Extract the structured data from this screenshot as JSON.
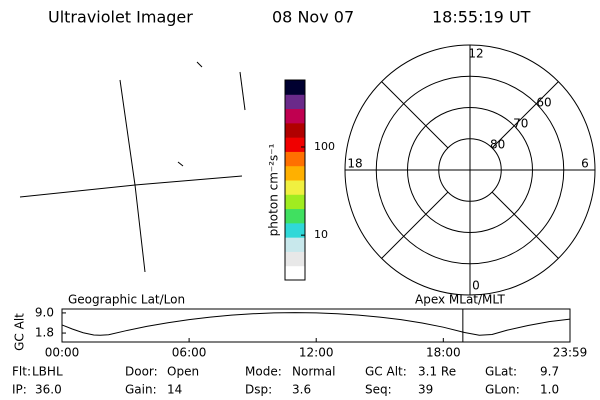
{
  "header": {
    "title": "Ultraviolet Imager",
    "date": "08 Nov 07",
    "time": "18:55:19 UT"
  },
  "colorbar": {
    "label": "photon cm⁻²s⁻¹",
    "log_scale": true,
    "lim": [
      3.1,
      575
    ],
    "ticks": [
      10,
      100
    ],
    "colors": [
      "#ffffff",
      "#e8e8e8",
      "#c8e8ec",
      "#30d8d8",
      "#40e060",
      "#a0ec20",
      "#f0f040",
      "#ffb000",
      "#ff7000",
      "#f00000",
      "#b00000",
      "#c00050",
      "#6a2a8a",
      "#000030"
    ]
  },
  "polar": {
    "mlt_ticks": [
      12,
      18,
      6,
      0
    ],
    "lat_circles": [
      60,
      70,
      80
    ],
    "lat_lim": [
      50,
      90
    ]
  },
  "chart_data": {
    "type": "line",
    "ylabel": "GC Alt",
    "left_title": "Geographic Lat/Lon",
    "right_title": "Apex MLat/MLT",
    "x": [
      0,
      0.5,
      1,
      1.5,
      1.8,
      2.2,
      3,
      4,
      5,
      6,
      7,
      8,
      9,
      10,
      11,
      12,
      13,
      14,
      15,
      16,
      17,
      18,
      19,
      19.7,
      20.3,
      21,
      22,
      23,
      23.98
    ],
    "series": [
      {
        "name": "GC Alt",
        "color": "#000000",
        "values": [
          4.7,
          3.2,
          1.9,
          1.1,
          1.0,
          1.2,
          2.6,
          4.2,
          5.5,
          6.6,
          7.5,
          8.2,
          8.7,
          9.0,
          9.1,
          9.0,
          8.7,
          8.2,
          7.5,
          6.6,
          5.4,
          3.9,
          2.0,
          1.0,
          1.3,
          2.8,
          4.5,
          5.9,
          6.8
        ]
      }
    ],
    "time_marker": 18.922,
    "time_marker_color": "#cc0000",
    "xlim": [
      0,
      23.98
    ],
    "xticks": [
      {
        "value": 0,
        "label": "00:00"
      },
      {
        "value": 6,
        "label": "06:00"
      },
      {
        "value": 12,
        "label": "12:00"
      },
      {
        "value": 18,
        "label": "18:00"
      },
      {
        "value": 23.98,
        "label": "23:59"
      }
    ],
    "ylim": [
      -1.4,
      10.4
    ],
    "yticks": [
      {
        "value": 9,
        "label": "9.0"
      },
      {
        "value": 1.8,
        "label": "1.8"
      }
    ]
  },
  "info": [
    {
      "label": "Flt:",
      "value": "LBHL"
    },
    {
      "label": "Door:",
      "value": "Open"
    },
    {
      "label": "Mode:",
      "value": "Normal"
    },
    {
      "label": "GC Alt:",
      "value": "3.1 Re"
    },
    {
      "label": "GLat:",
      "value": "9.7"
    },
    {
      "label": "IP:",
      "value": "36.0"
    },
    {
      "label": "Gain:",
      "value": "14"
    },
    {
      "label": "Dsp:",
      "value": "3.6"
    },
    {
      "label": "Seq:",
      "value": "39"
    },
    {
      "label": "GLon:",
      "value": "1.0"
    }
  ]
}
